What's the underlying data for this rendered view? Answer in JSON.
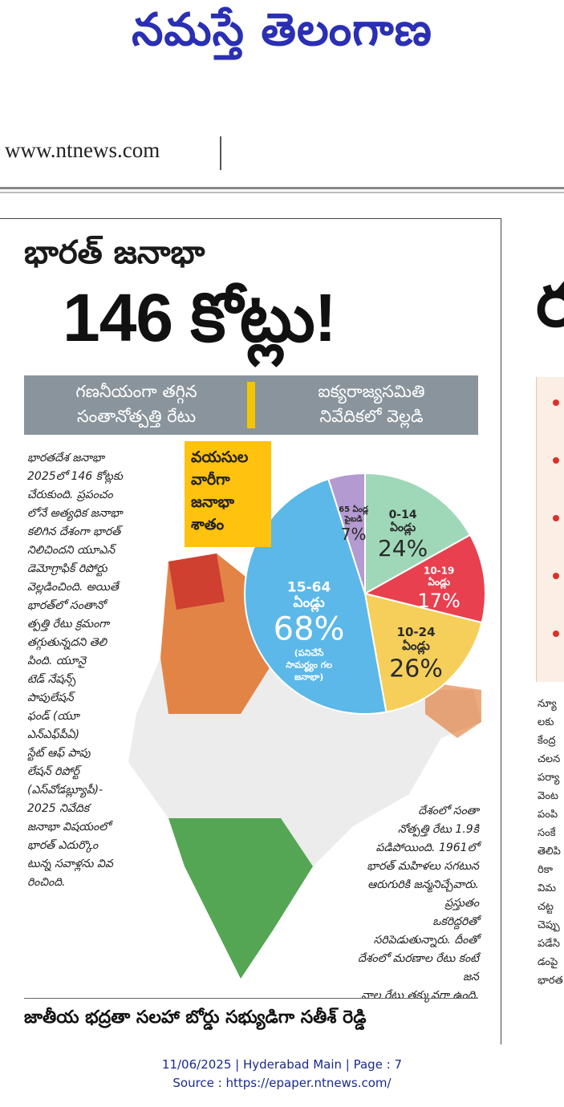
{
  "masthead": {
    "title": "నమస్తే తెలంగాణ"
  },
  "website": "www.ntnews.com",
  "article": {
    "headline_line1": "భారత్ జనాభా",
    "headline_line2": "146 కోట్లు!",
    "subhead_left": [
      "గణనీయంగా తగ్గిన",
      "సంతానోత్పత్తి రేటు"
    ],
    "subhead_right": [
      "ఐక్యరాజ్యసమితి",
      "నివేదికలో వెల్లడి"
    ],
    "age_box": [
      "వయసుల",
      "వారీగా",
      "జనాభా",
      "శాతం"
    ],
    "body_left": [
      "భారతదేశ జనాభా",
      "2025లో 146 కోట్లకు",
      "చేరుకుంది. ప్రపంచం",
      "లోనే అత్యధిక జనాభా",
      "కలిగిన దేశంగా భారత్",
      "నిలిచిందని యూఎన్",
      "డెమోగ్రాఫిక్ రిపోర్టు",
      "వెల్లడించింది. అయితే",
      "భారత్‌లో సంతానో",
      "త్పత్తి రేటు క్రమంగా",
      "తగ్గుతున్నదని తెలి",
      "పింది. యూనై",
      "టెడ్ నేషన్స్",
      "పాపులేషన్",
      "ఫండ్ (యూ",
      "ఎన్‌ఎఫ్‌పీఏ)",
      "స్టేట్ ఆఫ్ పాపు",
      "లేషన్ రిపోర్ట్",
      "(ఎస్‌వోడబ్ల్యూపీ)-",
      "2025 నివేదిక",
      "జనాభా విషయంలో",
      "భారత్ ఎదుర్కొం",
      "టున్న సవాళ్లను వివ",
      "రించింది."
    ],
    "body_right": [
      "దేశంలో సంతా",
      "నోత్పత్తి రేటు 1.9కి",
      "పడిపోయింది. 1961లో",
      "భారత్ మహిళలు సగటున",
      "ఆరుగురికి జన్మనిచ్చేవారు. ప్రస్తుతం",
      "ఒకరిద్దరితో సరిపెడుతున్నారు. దీంతో",
      "దేశంలో మరణాల రేటు కంటే జన",
      "నాల రేటు తక్కువగా ఉంది."
    ],
    "bottom_headline": "జాతీయ భద్రతా సలహా బోర్డు సభ్యుడిగా సతీశ్ రెడ్డి"
  },
  "right_column": {
    "headline_fragment": "ర",
    "text_fragments": [
      "న్యూ",
      "లకు",
      "కేంద్ర",
      "చలన",
      "పర్యా",
      "వెంట",
      "పంపి",
      "సంకే",
      "తెలిపి",
      "రికా",
      "విమ",
      "చట్ట",
      "చెప్పు",
      "పడేసి",
      "డంపై",
      "భారత"
    ]
  },
  "footer": {
    "line1": "11/06/2025 | Hyderabad Main | Page : 7",
    "line2": "Source : https://epaper.ntnews.com/"
  },
  "chart_data": {
    "type": "pie",
    "title": "వయసుల వారీగా జనాభా శాతం",
    "slices": [
      {
        "label_lines": [
          "0-14",
          "ఏండ్లు"
        ],
        "value": 24,
        "value_label": "24%",
        "color": "#9fd8b8"
      },
      {
        "label_lines": [
          "10-19",
          "ఏండ్లు"
        ],
        "value": 17,
        "value_label": "17%",
        "color": "#e8404f"
      },
      {
        "label_lines": [
          "10-24",
          "ఏండ్లు"
        ],
        "value": 26,
        "value_label": "26%",
        "color": "#f5cf5a"
      },
      {
        "label_lines": [
          "15-64",
          "ఏండ్లు"
        ],
        "value": 68,
        "value_label": "68%",
        "sub_lines": [
          "(పనిచేసే",
          "సామర్థ్యం గల",
          "జనాభా)"
        ],
        "color": "#5bb8e8"
      },
      {
        "label_lines": [
          "65 ఏండ్ల",
          "పైబడి"
        ],
        "value": 7,
        "value_label": "7%",
        "color": "#b39ad0"
      }
    ]
  }
}
